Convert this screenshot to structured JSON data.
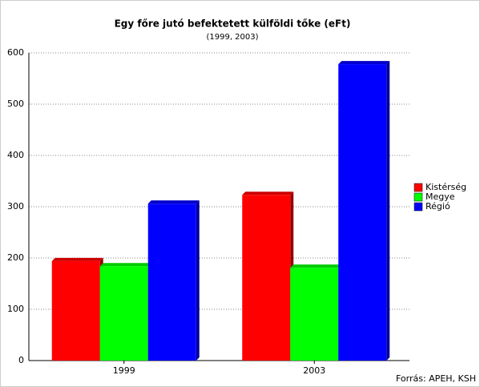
{
  "chart_data": {
    "type": "bar",
    "title": "Egy főre jutó befektetett külföldi tőke (eFt)",
    "subtitle": "(1999, 2003)",
    "source": "Forrás: APEH, KSH",
    "categories": [
      "1999",
      "2003"
    ],
    "series": [
      {
        "name": "Kistérség",
        "color": "#ff0000",
        "values": [
          194,
          323
        ]
      },
      {
        "name": "Megye",
        "color": "#00ff00",
        "values": [
          184,
          181
        ]
      },
      {
        "name": "Régió",
        "color": "#0000ff",
        "values": [
          306,
          578
        ]
      }
    ],
    "ylim": [
      0,
      600
    ],
    "yticks": [
      0,
      100,
      200,
      300,
      400,
      500,
      600
    ],
    "grid": true
  }
}
